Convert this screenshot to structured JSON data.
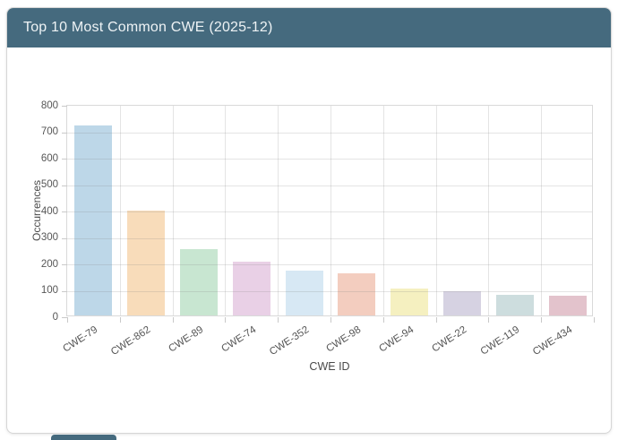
{
  "card": {
    "title": "Top 10 Most Common CWE (2025-12)"
  },
  "chart_data": {
    "type": "bar",
    "title": "Top 10 Most Common CWE (2025-12)",
    "categories": [
      "CWE-79",
      "CWE-862",
      "CWE-89",
      "CWE-74",
      "CWE-352",
      "CWE-98",
      "CWE-94",
      "CWE-22",
      "CWE-119",
      "CWE-434"
    ],
    "values": [
      720,
      395,
      250,
      203,
      170,
      158,
      101,
      92,
      78,
      74
    ],
    "xlabel": "CWE ID",
    "ylabel": "Occurrences",
    "ylim": [
      0,
      800
    ],
    "ytick_step": 100,
    "grid": true,
    "legend": false,
    "bar_colors": [
      "#bdd7e8",
      "#f8dcba",
      "#c8e6d1",
      "#e9d0e6",
      "#d7e8f4",
      "#f3cdbf",
      "#f5f0c0",
      "#d6d2e2",
      "#cdddde",
      "#e3c3cc"
    ]
  },
  "colors": {
    "header_bg": "#456a7e",
    "header_text": "#eef3f5",
    "card_border": "#d6d6d6",
    "grid": "#e0e0e0",
    "tick_text": "#565656",
    "axis_label_text": "#4a4a4a"
  }
}
